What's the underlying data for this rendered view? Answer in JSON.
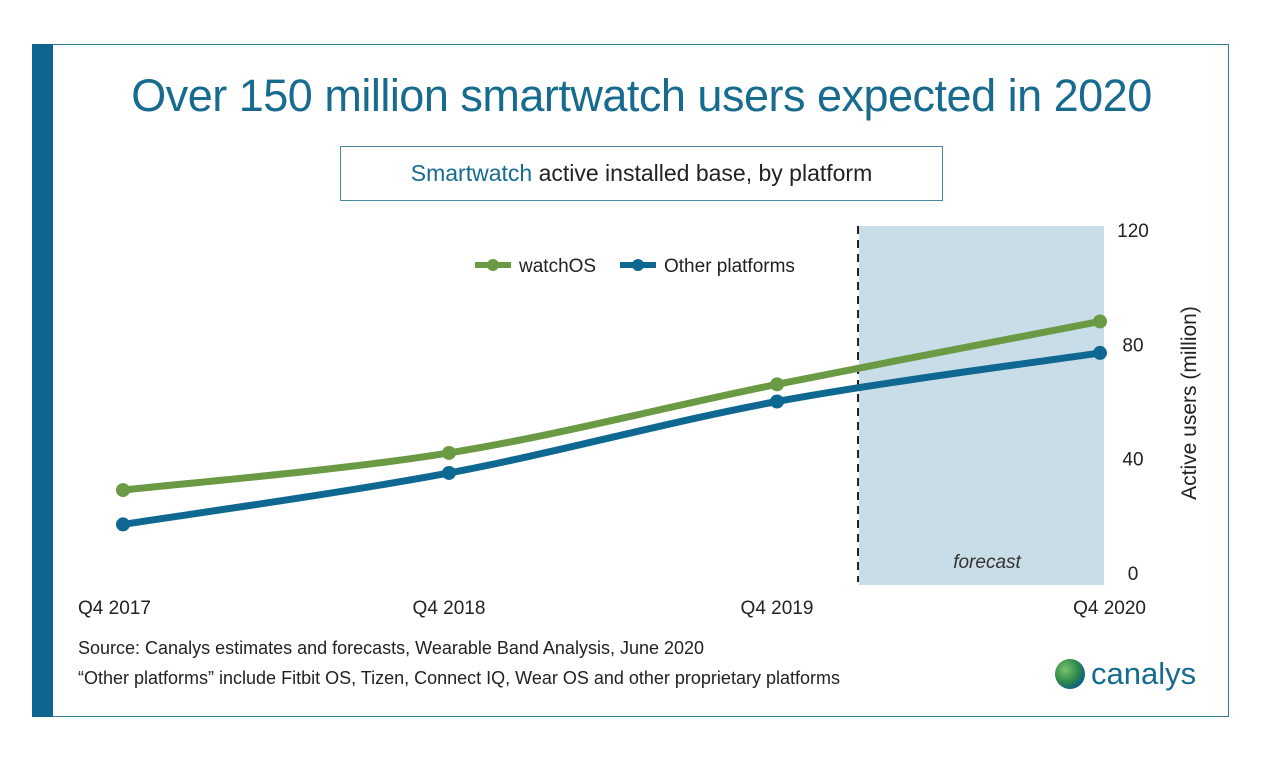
{
  "title": "Over 150 million smartwatch users expected in 2020",
  "subtitle": {
    "highlight": "Smartwatch",
    "rest": " active installed base, by platform"
  },
  "notes": [
    "Source: Canalys estimates and forecasts, Wearable Band Analysis, June 2020",
    "“Other platforms” include Fitbit OS, Tizen, Connect IQ, Wear OS and other proprietary platforms"
  ],
  "logo": "canalys",
  "colors": {
    "brand": "#0e6690",
    "watchOS": "#6a9a44",
    "other": "#0f6891",
    "forecast_shade": "#c9dde8"
  },
  "chart_data": {
    "type": "line",
    "categories": [
      "Q4 2017",
      "Q4 2018",
      "Q4 2019",
      "Q4 2020"
    ],
    "series": [
      {
        "name": "watchOS",
        "values": [
          29,
          42,
          66,
          88
        ]
      },
      {
        "name": "Other platforms",
        "values": [
          17,
          35,
          60,
          77
        ]
      }
    ],
    "ylabel": "Active users (million)",
    "ylim": [
      0,
      120
    ],
    "yticks": [
      0,
      40,
      80,
      120
    ],
    "y_axis_position": "right",
    "grid": false,
    "legend_position": "top-center",
    "annotation": "forecast",
    "forecast_start": "Q4 2019 + 0.25 year"
  }
}
